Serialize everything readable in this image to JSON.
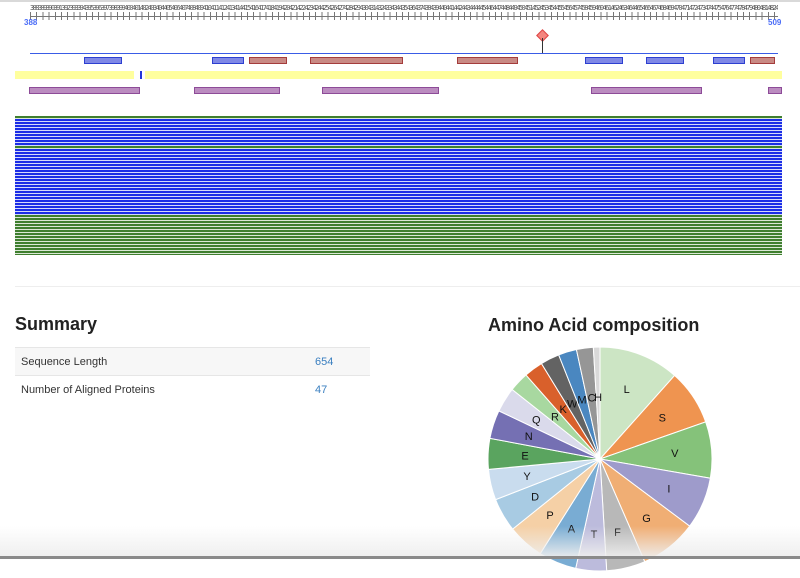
{
  "viewer": {
    "ruler": {
      "start": "388",
      "end": "509",
      "tick_labels": "388389390391392393394395396397398399400401402403404405406407408409410411412413414415416417418419420421422423424425426427428429430431432433434435436437438439440441442443444445446447448449450451452453454455456457458459460461462463464465466467468469470471472473474475476477478479480481482483484485486487488489490491492493494495496497498499500501502503504505506507508"
    },
    "colors": {
      "sequence_line": "#3a5ce6",
      "domain_blue": "#7f88e6",
      "domain_red": "#c98a84",
      "region_yellow": "#ffff9e",
      "region_purple": "#bb8cc0",
      "alignment_blue": "#1b2de6",
      "alignment_green": "#3f7f2f",
      "marker": "#f4857e"
    }
  },
  "summary": {
    "title": "Summary",
    "rows": [
      {
        "label": "Sequence Length",
        "value": "654"
      },
      {
        "label": "Number of Aligned Proteins",
        "value": "47"
      }
    ]
  },
  "composition": {
    "title": "Amino Acid composition"
  },
  "chart_data": {
    "type": "pie",
    "title": "Amino Acid composition",
    "start_angle_deg": 0,
    "direction": "clockwise",
    "slices": [
      {
        "label": "L",
        "value": 11.0,
        "color": "#cce5c4"
      },
      {
        "label": "S",
        "value": 7.6,
        "color": "#ef9450"
      },
      {
        "label": "V",
        "value": 7.7,
        "color": "#85c27a"
      },
      {
        "label": "I",
        "value": 7.1,
        "color": "#9e9bcb"
      },
      {
        "label": "G",
        "value": 7.8,
        "color": "#f0ae74"
      },
      {
        "label": "F",
        "value": 5.3,
        "color": "#b8b8b8"
      },
      {
        "label": "T",
        "value": 4.2,
        "color": "#bcbbdc"
      },
      {
        "label": "A",
        "value": 5.2,
        "color": "#79acd3"
      },
      {
        "label": "P",
        "value": 5.0,
        "color": "#f5d0a6"
      },
      {
        "label": "D",
        "value": 4.6,
        "color": "#a8cbe3"
      },
      {
        "label": "Y",
        "value": 4.2,
        "color": "#c9dcee"
      },
      {
        "label": "E",
        "value": 4.2,
        "color": "#5aa45f"
      },
      {
        "label": "N",
        "value": 3.9,
        "color": "#7570b3"
      },
      {
        "label": "Q",
        "value": 3.4,
        "color": "#dadaeb"
      },
      {
        "label": "R",
        "value": 2.7,
        "color": "#a8d8a0"
      },
      {
        "label": "K",
        "value": 2.6,
        "color": "#d9602b"
      },
      {
        "label": "W",
        "value": 2.6,
        "color": "#636363"
      },
      {
        "label": "M",
        "value": 2.5,
        "color": "#4a87c0"
      },
      {
        "label": "C",
        "value": 2.3,
        "color": "#969696"
      },
      {
        "label": "H",
        "value": 0.9,
        "color": "#d9d9d9"
      }
    ]
  }
}
